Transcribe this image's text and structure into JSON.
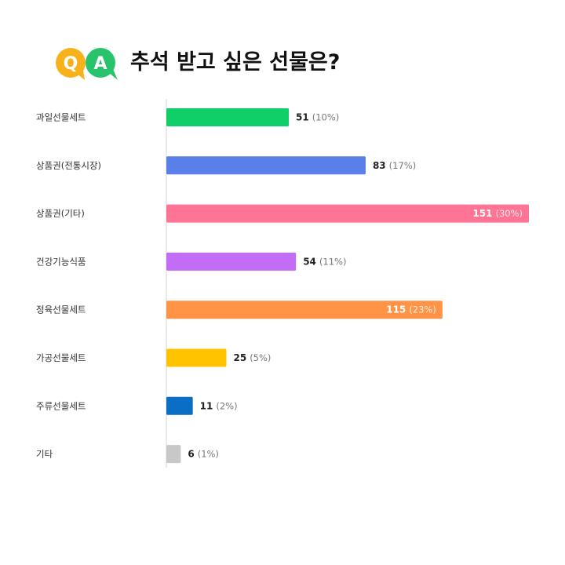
{
  "header": {
    "title": "추석 받고 싶은 선물은?",
    "logo_q": "Q",
    "logo_a": "A"
  },
  "colors": {
    "logo_q": "#F7B21B",
    "logo_a": "#28C36B",
    "axis_line": "#E3E3E3"
  },
  "chart_data": {
    "type": "bar",
    "orientation": "horizontal",
    "title": "추석 받고 싶은 선물은?",
    "xlim": [
      0,
      151
    ],
    "grid": false,
    "categories": [
      "과일선물세트",
      "상품권(전통시장)",
      "상품권(기타)",
      "건강기능식품",
      "정육선물세트",
      "가공선물세트",
      "주류선물세트",
      "기타"
    ],
    "values": [
      51,
      83,
      151,
      54,
      115,
      25,
      11,
      6
    ],
    "percent_labels": [
      "(10%)",
      "(17%)",
      "(30%)",
      "(11%)",
      "(23%)",
      "(5%)",
      "(2%)",
      "(1%)"
    ],
    "colors": [
      "#10CF68",
      "#5B7FE9",
      "#FF7395",
      "#C36CF5",
      "#FF9447",
      "#FFC300",
      "#0A6EC4",
      "#C8C8C8"
    ],
    "labels_inside": [
      false,
      false,
      true,
      false,
      true,
      false,
      false,
      false
    ]
  }
}
